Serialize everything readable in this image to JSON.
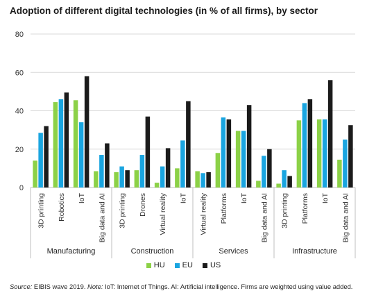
{
  "title": "Adoption of different digital technologies (in % of all firms), by sector",
  "source": {
    "source_label": "Source:",
    "source_text": " EIBIS wave 2019. ",
    "note_label": "Note:",
    "note_text": " IoT: Internet of Things. AI: Artificial intelligence. Firms are weighted using value added."
  },
  "colors": {
    "HU": "#8cd147",
    "EU": "#1aa5e0",
    "US": "#1b1b1b",
    "grid": "#d9d9d9",
    "axis": "#bfbfbf"
  },
  "chart_data": {
    "type": "bar",
    "title": "Adoption of different digital technologies (in % of all firms), by sector",
    "ylim": [
      0,
      80
    ],
    "yticks": [
      0,
      20,
      40,
      60,
      80
    ],
    "grid": true,
    "legend_position": "bottom",
    "series_names": [
      "HU",
      "EU",
      "US"
    ],
    "groups": [
      {
        "sector": "Manufacturing",
        "categories": [
          "3D printing",
          "Robotics",
          "IoT",
          "Big data and AI"
        ],
        "values": {
          "HU": [
            14,
            44.5,
            45.5,
            8.5
          ],
          "EU": [
            28.5,
            46,
            34,
            17
          ],
          "US": [
            32,
            49.5,
            58,
            23
          ]
        }
      },
      {
        "sector": "Construction",
        "categories": [
          "3D printing",
          "Drones",
          "Virtual reality",
          "IoT"
        ],
        "values": {
          "HU": [
            8,
            9,
            2.5,
            10
          ],
          "EU": [
            11,
            17,
            11,
            24.5
          ],
          "US": [
            9,
            37,
            20.5,
            45
          ]
        }
      },
      {
        "sector": "Services",
        "categories": [
          "Virtual reality",
          "Platforms",
          "IoT",
          "Big data and AI"
        ],
        "values": {
          "HU": [
            8.5,
            18,
            29.5,
            3.5
          ],
          "EU": [
            7.5,
            36.5,
            29.5,
            16.5
          ],
          "US": [
            8,
            35.5,
            43,
            20
          ]
        }
      },
      {
        "sector": "Infrastructure",
        "categories": [
          "3D printing",
          "Platforms",
          "IoT",
          "Big data and AI"
        ],
        "values": {
          "HU": [
            2,
            35,
            35.5,
            14.5
          ],
          "EU": [
            9,
            44,
            35.5,
            25
          ],
          "US": [
            6,
            46,
            56,
            32.5
          ]
        }
      }
    ]
  }
}
